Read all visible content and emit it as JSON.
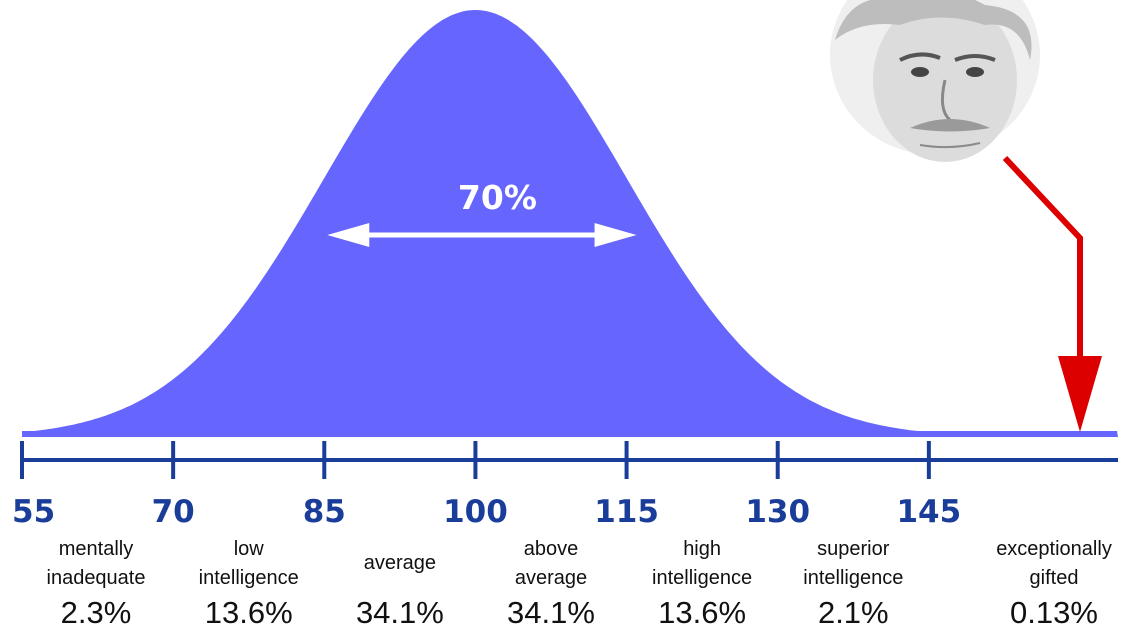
{
  "chart_data": {
    "type": "area",
    "distribution": "normal",
    "mean": 100,
    "sd": 15,
    "xlim": [
      55,
      160
    ],
    "x_ticks": [
      55,
      70,
      85,
      100,
      115,
      130,
      145
    ],
    "ticks": [
      {
        "x": 55,
        "label": "55"
      },
      {
        "x": 70,
        "label": "70"
      },
      {
        "x": 85,
        "label": "85"
      },
      {
        "x": 100,
        "label": "100"
      },
      {
        "x": 115,
        "label": "115"
      },
      {
        "x": 130,
        "label": "130"
      },
      {
        "x": 145,
        "label": "145"
      }
    ],
    "categories": [
      {
        "lines": [
          "mentally",
          "inadequate"
        ],
        "percent": "2.3%",
        "from": 55,
        "to": 70
      },
      {
        "lines": [
          "low",
          "intelligence"
        ],
        "percent": "13.6%",
        "from": 70,
        "to": 85
      },
      {
        "lines": [
          "average"
        ],
        "percent": "34.1%",
        "from": 85,
        "to": 100
      },
      {
        "lines": [
          "above",
          "average"
        ],
        "percent": "34.1%",
        "from": 100,
        "to": 115
      },
      {
        "lines": [
          "high",
          "intelligence"
        ],
        "percent": "13.6%",
        "from": 115,
        "to": 130
      },
      {
        "lines": [
          "superior",
          "intelligence"
        ],
        "percent": "2.1%",
        "from": 130,
        "to": 145
      },
      {
        "lines": [
          "exceptionally",
          "gifted"
        ],
        "percent": "0.13%",
        "from": 145,
        "to": null
      }
    ],
    "annotation": {
      "text": "70%",
      "from": 85,
      "to": 115
    },
    "marker_arrow_x": 160,
    "colors": {
      "curve": "#6666ff",
      "axis": "#1a3d99",
      "tick_label": "#1a3d99",
      "arrow": "#dd0000",
      "annotation": "#ffffff"
    }
  }
}
